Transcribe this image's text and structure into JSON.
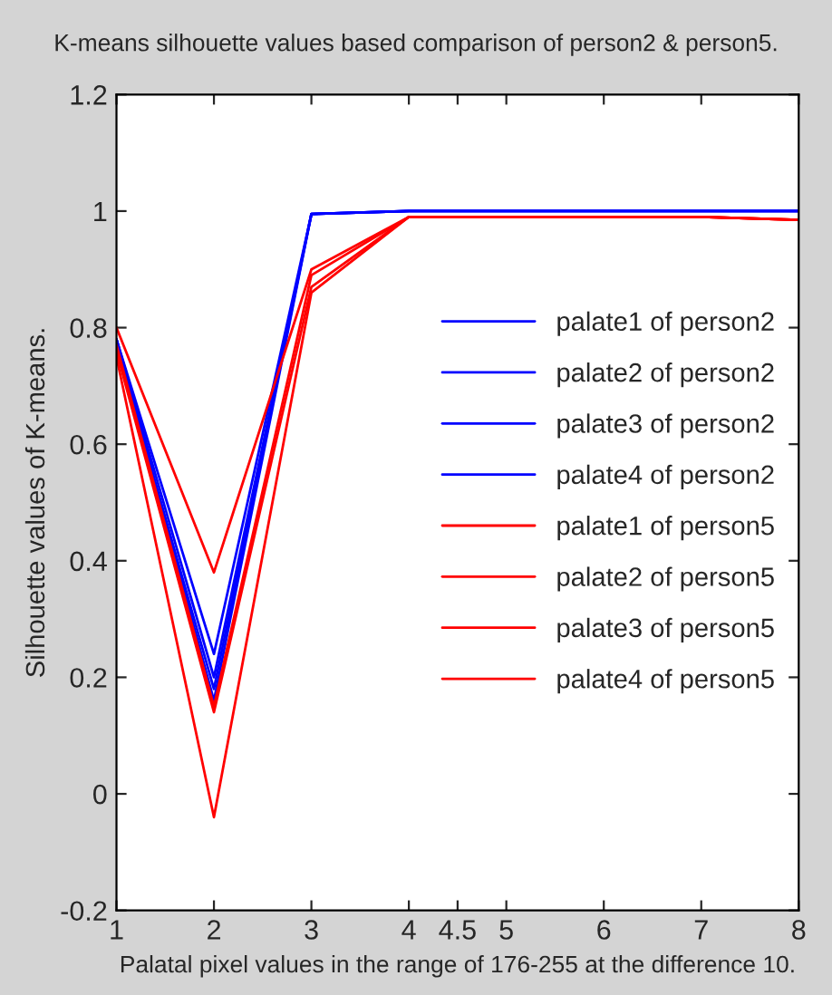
{
  "chart_data": {
    "type": "line",
    "title": "K-means silhouette values based comparison of person2 & person5.",
    "xlabel": "Palatal pixel values in the range of 176-255 at the difference 10.",
    "ylabel": "Silhouette values of K-means.",
    "x": [
      1,
      2,
      3,
      4,
      5,
      6,
      7,
      8
    ],
    "series": [
      {
        "name": "palate1 of person2",
        "color": "#0000ff",
        "values": [
          0.78,
          0.24,
          0.995,
          1.0,
          1.0,
          1.0,
          1.0,
          1.0
        ]
      },
      {
        "name": "palate2 of person2",
        "color": "#0000ff",
        "values": [
          0.78,
          0.2,
          0.995,
          1.0,
          1.0,
          1.0,
          1.0,
          1.0
        ]
      },
      {
        "name": "palate3 of person2",
        "color": "#0000ff",
        "values": [
          0.77,
          0.18,
          0.995,
          1.0,
          1.0,
          1.0,
          1.0,
          1.0
        ]
      },
      {
        "name": "palate4 of person2",
        "color": "#0000ff",
        "values": [
          0.78,
          0.16,
          0.995,
          1.0,
          1.0,
          1.0,
          1.0,
          1.0
        ]
      },
      {
        "name": "palate1 of person5",
        "color": "#ff0000",
        "values": [
          0.8,
          0.38,
          0.9,
          0.99,
          0.99,
          0.99,
          0.99,
          0.985
        ]
      },
      {
        "name": "palate2 of person5",
        "color": "#ff0000",
        "values": [
          0.77,
          0.15,
          0.89,
          0.99,
          0.99,
          0.99,
          0.99,
          0.985
        ]
      },
      {
        "name": "palate3 of person5",
        "color": "#ff0000",
        "values": [
          0.76,
          0.14,
          0.87,
          0.99,
          0.99,
          0.99,
          0.99,
          0.985
        ]
      },
      {
        "name": "palate4 of person5",
        "color": "#ff0000",
        "values": [
          0.75,
          -0.04,
          0.86,
          0.99,
          0.99,
          0.99,
          0.99,
          0.985
        ]
      }
    ],
    "xlim": [
      1,
      8
    ],
    "xticks": [
      1,
      2,
      3,
      4,
      4.5,
      5,
      6,
      7,
      8
    ],
    "ylim": [
      -0.2,
      1.2
    ],
    "yticks": [
      -0.2,
      0,
      0.2,
      0.4,
      0.6,
      0.8,
      1,
      1.2
    ],
    "legend": "right",
    "grid": false,
    "marker": "none",
    "line_style": "solid"
  }
}
